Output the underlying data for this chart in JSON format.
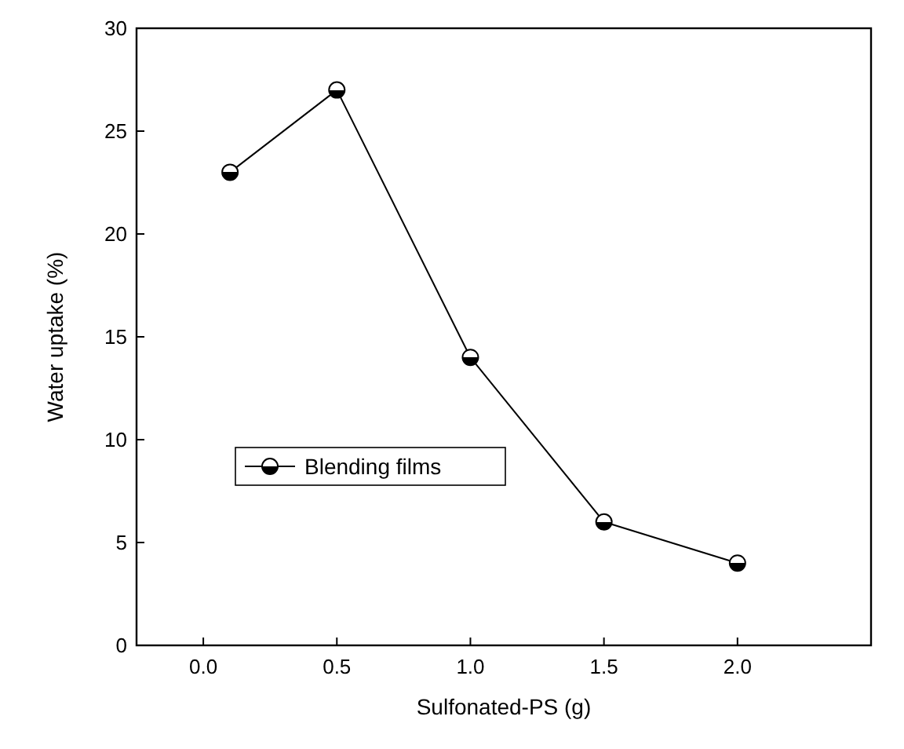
{
  "chart_data": {
    "type": "line",
    "xlabel": "Sulfonated-PS (g)",
    "ylabel": "Water uptake (%)",
    "x": [
      0.1,
      0.5,
      1.0,
      1.5,
      2.0
    ],
    "series": [
      {
        "name": "Blending films",
        "color": "#000000",
        "values": [
          23,
          27,
          14,
          6,
          4
        ]
      }
    ],
    "xlim": [
      -0.25,
      2.5
    ],
    "xticks": [
      {
        "value": 0,
        "label": "0.0"
      },
      {
        "value": 0.5,
        "label": "0.5"
      },
      {
        "value": 1,
        "label": "1.0"
      },
      {
        "value": 1.5,
        "label": "1.5"
      },
      {
        "value": 2,
        "label": "2.0"
      }
    ],
    "ylim": [
      0,
      30
    ],
    "yticks": [
      0,
      5,
      10,
      15,
      20,
      25,
      30
    ],
    "marker": "circle",
    "line_style": "solid",
    "legend": "left",
    "grid": false
  }
}
